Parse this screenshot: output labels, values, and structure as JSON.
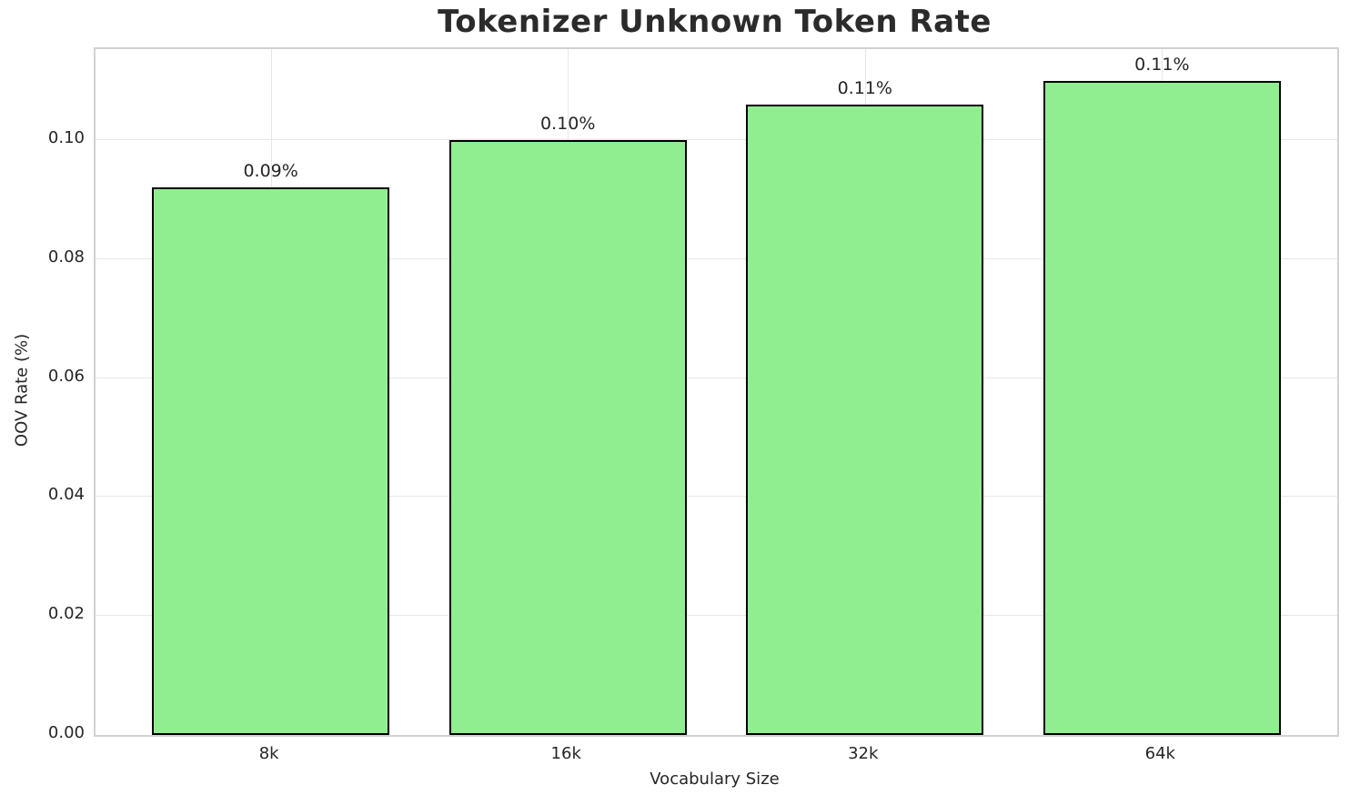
{
  "chart_data": {
    "type": "bar",
    "title": "Tokenizer Unknown Token Rate",
    "xlabel": "Vocabulary Size",
    "ylabel": "OOV Rate (%)",
    "categories": [
      "8k",
      "16k",
      "32k",
      "64k"
    ],
    "values": [
      0.092,
      0.1,
      0.106,
      0.11
    ],
    "bar_labels": [
      "0.09%",
      "0.10%",
      "0.11%",
      "0.11%"
    ],
    "ytick_values": [
      0.0,
      0.02,
      0.04,
      0.06,
      0.08,
      0.1
    ],
    "ytick_labels": [
      "0.00",
      "0.02",
      "0.04",
      "0.06",
      "0.08",
      "0.10"
    ],
    "ylim": [
      0,
      0.1153
    ],
    "xlim": [
      -0.59,
      3.59
    ],
    "bar_width": 0.8,
    "grid": true,
    "legend_position": "none",
    "colors": {
      "bar_fill": "#90EE90",
      "bar_edge": "#000000",
      "grid": "#e7e7e7",
      "spine": "#d2d2d2",
      "text": "#262626",
      "background": "#ffffff"
    }
  }
}
